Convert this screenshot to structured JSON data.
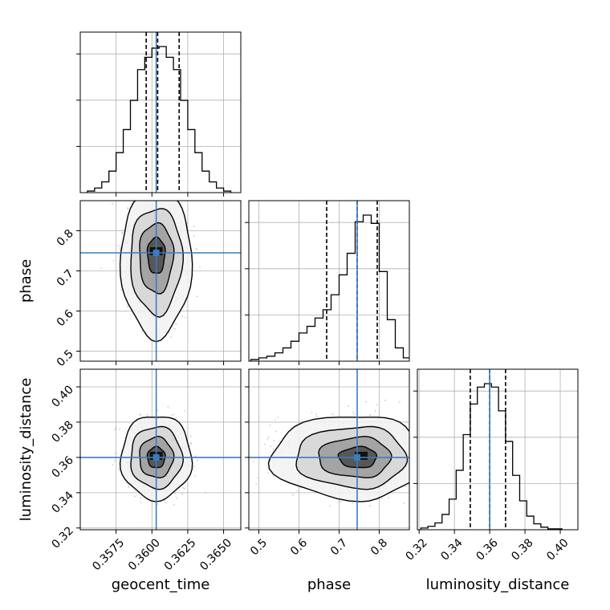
{
  "chart_data": {
    "type": "corner",
    "parameters": [
      "geocent_time",
      "phase",
      "luminosity_distance"
    ],
    "truths": {
      "geocent_time": 0.3603,
      "phase": 0.745,
      "luminosity_distance": 0.36
    },
    "colors": {
      "truth": "#3b7bbf",
      "hist": "#000000",
      "grid": "#b0b0b0",
      "scatter": "#9a9a9a"
    },
    "axes": {
      "geocent_time": {
        "range": [
          0.355,
          0.3662
        ],
        "ticks": [
          0.3575,
          0.36,
          0.3625,
          0.365
        ],
        "tick_labels": [
          "0.3575",
          "0.3600",
          "0.3625",
          "0.3650"
        ],
        "label": "geocent_time"
      },
      "phase": {
        "range": [
          0.475,
          0.875
        ],
        "ticks": [
          0.5,
          0.6,
          0.7,
          0.8
        ],
        "tick_labels": [
          "0.5",
          "0.6",
          "0.7",
          "0.8"
        ],
        "label": "phase"
      },
      "luminosity_distance": {
        "range": [
          0.319,
          0.41
        ],
        "ticks": [
          0.32,
          0.34,
          0.36,
          0.38,
          0.4
        ],
        "tick_labels": [
          "0.32",
          "0.34",
          "0.36",
          "0.38",
          "0.40"
        ],
        "label": "luminosity_distance"
      }
    },
    "marginals": {
      "geocent_time": {
        "bin_edges": [
          0.3555,
          0.356,
          0.3565,
          0.357,
          0.3575,
          0.358,
          0.3585,
          0.359,
          0.3595,
          0.36,
          0.3605,
          0.361,
          0.3615,
          0.362,
          0.3625,
          0.363,
          0.3635,
          0.364,
          0.3645,
          0.365,
          0.3655
        ],
        "counts": [
          2,
          6,
          14,
          28,
          52,
          82,
          120,
          160,
          176,
          188,
          190,
          176,
          160,
          120,
          82,
          52,
          28,
          14,
          6,
          2
        ],
        "quantiles": [
          0.3596,
          0.3604,
          0.3619
        ]
      },
      "phase": {
        "bin_edges": [
          0.48,
          0.5,
          0.52,
          0.54,
          0.56,
          0.58,
          0.6,
          0.62,
          0.64,
          0.66,
          0.68,
          0.7,
          0.72,
          0.74,
          0.76,
          0.78,
          0.8,
          0.82,
          0.84,
          0.86,
          0.88
        ],
        "counts": [
          2,
          4,
          6,
          10,
          16,
          24,
          34,
          42,
          52,
          62,
          80,
          104,
          130,
          168,
          176,
          166,
          108,
          50,
          16,
          4
        ],
        "quantiles": [
          0.669,
          0.745,
          0.795
        ]
      },
      "luminosity_distance": {
        "bin_edges": [
          0.321,
          0.325,
          0.329,
          0.333,
          0.337,
          0.341,
          0.345,
          0.349,
          0.353,
          0.357,
          0.361,
          0.365,
          0.369,
          0.373,
          0.377,
          0.381,
          0.385,
          0.389,
          0.393,
          0.397,
          0.401
        ],
        "counts": [
          2,
          4,
          8,
          18,
          36,
          70,
          112,
          148,
          168,
          172,
          168,
          140,
          104,
          64,
          34,
          16,
          7,
          3,
          1,
          1
        ],
        "quantiles": [
          0.349,
          0.36,
          0.369
        ]
      }
    },
    "pairs": [
      {
        "x": "geocent_time",
        "y": "phase",
        "center": [
          0.3603,
          0.745
        ],
        "spread": [
          0.00095,
          0.058
        ],
        "skew_y": -0.4,
        "levels": [
          0.012,
          0.022,
          0.036,
          0.05
        ]
      },
      {
        "x": "geocent_time",
        "y": "luminosity_distance",
        "center": [
          0.3603,
          0.36
        ],
        "spread": [
          0.00095,
          0.0092
        ],
        "skew_y": 0,
        "levels": [
          0.0085,
          0.016,
          0.026,
          0.037
        ]
      },
      {
        "x": "phase",
        "y": "luminosity_distance",
        "center": [
          0.755,
          0.36
        ],
        "spread": [
          0.058,
          0.0092
        ],
        "skew_x": -0.5,
        "levels": [
          0.025,
          0.055,
          0.09,
          0.13
        ]
      }
    ]
  }
}
